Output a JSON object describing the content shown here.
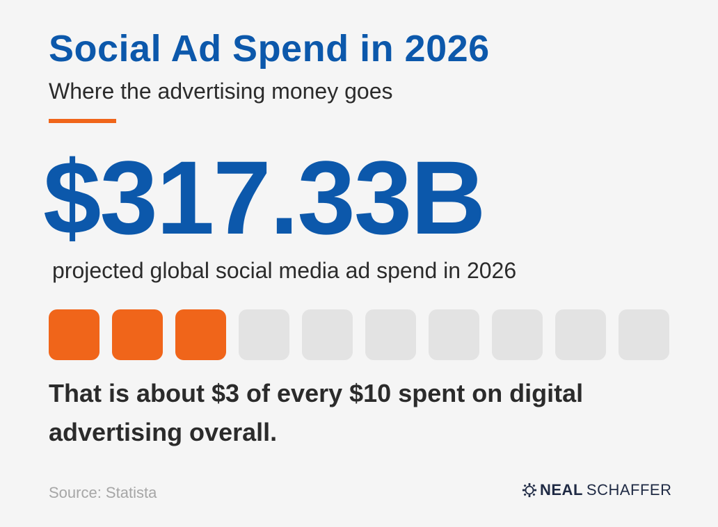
{
  "header": {
    "title": "Social Ad Spend in 2026",
    "subtitle": "Where the advertising money goes"
  },
  "headline_stat": {
    "value": "$317.33B",
    "caption": "projected global social media ad spend in 2026"
  },
  "proportion_blocks": {
    "total": 10,
    "filled": 3
  },
  "statement": "That is about $3 of every $10 spent on digital advertising overall.",
  "footer": {
    "source": "Source: Statista",
    "logo_bold": "NEAL",
    "logo_light": "SCHAFFER",
    "logo_icon": "gear-icon"
  },
  "colors": {
    "brand_blue": "#0c58ab",
    "accent_orange": "#f0651a",
    "empty_block": "#e3e3e3",
    "body_text": "#2b2b2b",
    "muted_text": "#a6a6a6",
    "background": "#f5f5f5"
  }
}
